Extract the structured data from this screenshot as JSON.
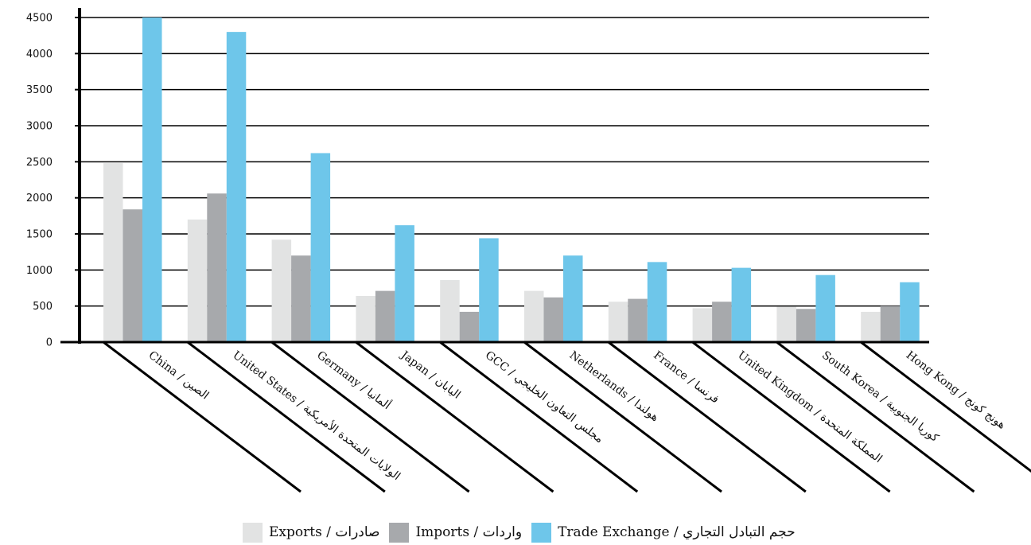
{
  "chart_data": {
    "type": "bar",
    "title": "",
    "xlabel": "",
    "ylabel": "",
    "ylim": [
      0,
      4500
    ],
    "yticks": [
      0,
      500,
      1000,
      1500,
      2000,
      2500,
      3000,
      3500,
      4000,
      4500
    ],
    "grid": true,
    "legend_position": "bottom",
    "categories": [
      "China / الصين",
      "United States / الولايات المتحدة الأمريكية",
      "Germany / ألمانيا",
      "Japan / اليابان",
      "GCC / مجلس التعاون الخليجي",
      "Netherlands / هولندا",
      "France / فرنسا",
      "United Kingdom / المملكة المتحدة",
      "South Korea / كوريا الجنوبية",
      "Hong Kong / هونج كونج"
    ],
    "series": [
      {
        "name": "Exports / صادرات",
        "color": "#e2e3e3",
        "values": [
          2480,
          1700,
          1420,
          640,
          860,
          710,
          560,
          470,
          490,
          420
        ]
      },
      {
        "name": "Imports / واردات",
        "color": "#a7a9ac",
        "values": [
          1840,
          2060,
          1200,
          710,
          420,
          620,
          600,
          560,
          460,
          500
        ]
      },
      {
        "name": "Trade Exchange / حجم التبادل التجاري",
        "color": "#6ec6ea",
        "values": [
          4500,
          4300,
          2620,
          1620,
          1440,
          1200,
          1110,
          1030,
          930,
          830
        ]
      }
    ]
  }
}
